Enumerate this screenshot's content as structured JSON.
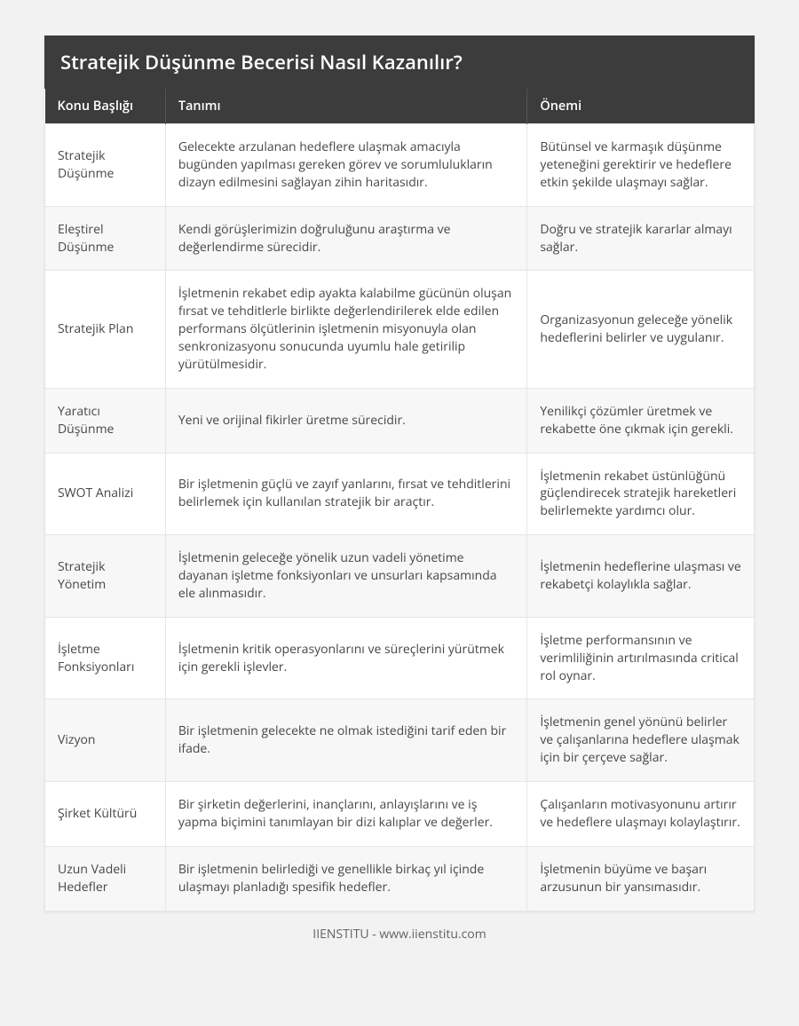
{
  "title": "Stratejik Düşünme Becerisi Nasıl Kazanılır?",
  "columns": {
    "topic": "Konu Başlığı",
    "definition": "Tanımı",
    "importance": "Önemi"
  },
  "rows": [
    {
      "topic": "Stratejik Düşünme",
      "definition": "Gelecekte arzulanan hedeflere ulaşmak amacıyla bugünden yapılması gereken görev ve sorumlulukların dizayn edilmesini sağlayan zihin haritasıdır.",
      "importance": "Bütünsel ve karmaşık düşünme yeteneğini gerektirir ve hedeflere etkin şekilde ulaşmayı sağlar."
    },
    {
      "topic": "Eleştirel Düşünme",
      "definition": "Kendi görüşlerimizin doğruluğunu araştırma ve değerlendirme sürecidir.",
      "importance": "Doğru ve stratejik kararlar almayı sağlar."
    },
    {
      "topic": "Stratejik Plan",
      "definition": "İşletmenin rekabet edip ayakta kalabilme gücünün oluşan fırsat ve tehditlerle birlikte değerlendirilerek elde edilen performans ölçütlerinin işletmenin misyonuyla olan senkronizasyonu sonucunda uyumlu hale getirilip yürütülmesidir.",
      "importance": "Organizasyonun geleceğe yönelik hedeflerini belirler ve uygulanır."
    },
    {
      "topic": "Yaratıcı Düşünme",
      "definition": "Yeni ve orijinal fikirler üretme sürecidir.",
      "importance": "Yenilikçi çözümler üretmek ve rekabette öne çıkmak için gerekli."
    },
    {
      "topic": "SWOT Analizi",
      "definition": "Bir işletmenin güçlü ve zayıf yanlarını, fırsat ve tehditlerini belirlemek için kullanılan stratejik bir araçtır.",
      "importance": "İşletmenin rekabet üstünlüğünü güçlendirecek stratejik hareketleri belirlemekte yardımcı olur."
    },
    {
      "topic": "Stratejik Yönetim",
      "definition": "İşletmenin geleceğe yönelik uzun vadeli yönetime dayanan işletme fonksiyonları ve unsurları kapsamında ele alınmasıdır.",
      "importance": "İşletmenin hedeflerine ulaşması ve rekabetçi kolaylıkla sağlar."
    },
    {
      "topic": "İşletme Fonksiyonları",
      "definition": "İşletmenin kritik operasyonlarını ve süreçlerini yürütmek için gerekli işlevler.",
      "importance": "İşletme performansının ve verimliliğinin artırılmasında critical rol oynar."
    },
    {
      "topic": "Vizyon",
      "definition": "Bir işletmenin gelecekte ne olmak istediğini tarif eden bir ifade.",
      "importance": "İşletmenin genel yönünü belirler ve çalışanlarına hedeflere ulaşmak için bir çerçeve sağlar."
    },
    {
      "topic": "Şirket Kültürü",
      "definition": "Bir şirketin değerlerini, inançlarını, anlayışlarını ve iş yapma biçimini tanımlayan bir dizi kalıplar ve değerler.",
      "importance": "Çalışanların motivasyonunu artırır ve hedeflere ulaşmayı kolaylaştırır."
    },
    {
      "topic": "Uzun Vadeli Hedefler",
      "definition": "Bir işletmenin belirlediği ve genellikle birkaç yıl içinde ulaşmayı planladığı spesifik hedefler.",
      "importance": "İşletmenin büyüme ve başarı arzusunun bir yansımasıdır."
    }
  ],
  "footer": "IIENSTITU - www.iienstitu.com",
  "style": {
    "page_bg": "#f2f2f2",
    "header_bg": "#3c3c3c",
    "header_text": "#ffffff",
    "cell_text": "#474747",
    "border_color": "#e6e6e6",
    "row_alt_bg": "#f7f7f7",
    "title_fontsize": 22,
    "header_fontsize": 14.5,
    "cell_fontsize": 14,
    "footer_fontsize": 14,
    "col_widths": [
      "17%",
      "51%",
      "32%"
    ]
  }
}
